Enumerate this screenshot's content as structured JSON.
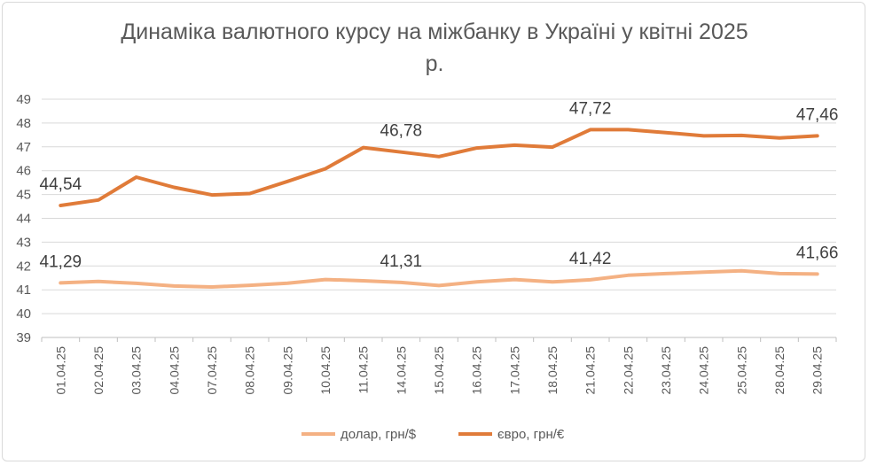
{
  "chart_data": {
    "type": "line",
    "title_line1": "Динаміка валютного курсу на міжбанку в Україні у квітні 2025",
    "title_line2": "р.",
    "ylim": [
      39,
      49
    ],
    "yticks": [
      39,
      40,
      41,
      42,
      43,
      44,
      45,
      46,
      47,
      48,
      49
    ],
    "grid": true,
    "legend_position": "bottom",
    "categories": [
      "01.04.25",
      "02.04.25",
      "03.04.25",
      "04.04.25",
      "07.04.25",
      "08.04.25",
      "09.04.25",
      "10.04.25",
      "11.04.25",
      "14.04.25",
      "15.04.25",
      "16.04.25",
      "17.04.25",
      "18.04.25",
      "21.04.25",
      "22.04.25",
      "23.04.25",
      "24.04.25",
      "25.04.25",
      "28.04.25",
      "29.04.25"
    ],
    "series": [
      {
        "name": "долар, грн/$",
        "color": "#F4B183",
        "values": [
          41.29,
          41.35,
          41.27,
          41.16,
          41.12,
          41.19,
          41.28,
          41.43,
          41.38,
          41.31,
          41.18,
          41.33,
          41.43,
          41.33,
          41.42,
          41.61,
          41.68,
          41.74,
          41.8,
          41.68,
          41.66
        ],
        "labels": [
          {
            "index": 0,
            "text": "41,29"
          },
          {
            "index": 9,
            "text": "41,31"
          },
          {
            "index": 14,
            "text": "41,42"
          },
          {
            "index": 20,
            "text": "41,66"
          }
        ]
      },
      {
        "name": "євро, грн/€",
        "color": "#E07B39",
        "values": [
          44.54,
          44.77,
          45.73,
          45.3,
          44.98,
          45.04,
          45.55,
          46.08,
          46.97,
          46.78,
          46.59,
          46.95,
          47.07,
          46.99,
          47.72,
          47.72,
          47.6,
          47.46,
          47.48,
          47.37,
          47.46
        ],
        "labels": [
          {
            "index": 0,
            "text": "44,54"
          },
          {
            "index": 9,
            "text": "46,78"
          },
          {
            "index": 14,
            "text": "47,72"
          },
          {
            "index": 20,
            "text": "47,46"
          }
        ]
      }
    ]
  }
}
